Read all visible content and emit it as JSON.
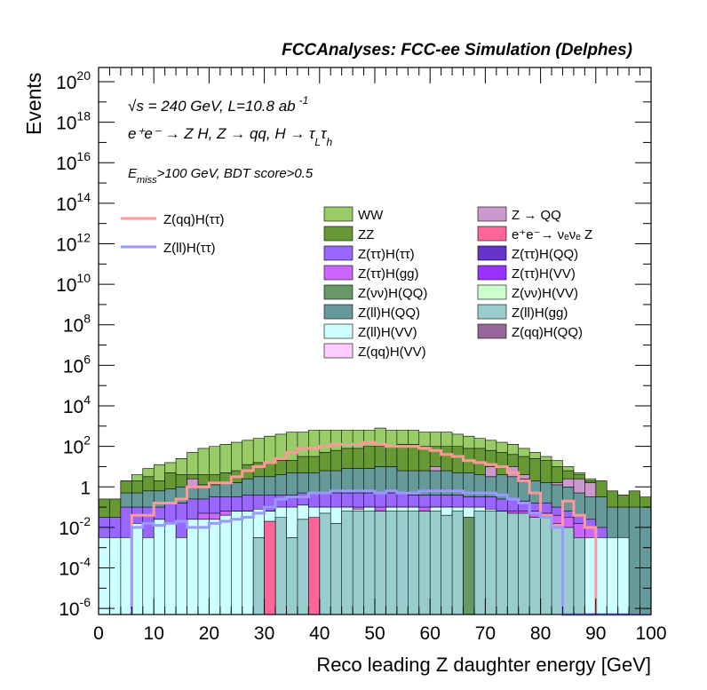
{
  "chart_data": {
    "type": "stacked-histogram",
    "title": "FCCAnalyses: FCC-ee Simulation (Delphes)",
    "xlabel": "Reco leading Z daughter energy [GeV]",
    "ylabel": "Events",
    "xlim": [
      0,
      100
    ],
    "ylim_log10": [
      -6.3,
      20.7
    ],
    "yscale": "log",
    "x_ticks": [
      "0",
      "10",
      "20",
      "30",
      "40",
      "50",
      "60",
      "70",
      "80",
      "90",
      "100"
    ],
    "y_ticks": [
      {
        "base": "10",
        "exp": "-6",
        "v": -6
      },
      {
        "base": "10",
        "exp": "-4",
        "v": -4
      },
      {
        "base": "10",
        "exp": "-2",
        "v": -2
      },
      {
        "base": "1",
        "exp": "",
        "v": 0
      },
      {
        "base": "10",
        "exp": "2",
        "v": 2
      },
      {
        "base": "10",
        "exp": "4",
        "v": 4
      },
      {
        "base": "10",
        "exp": "6",
        "v": 6
      },
      {
        "base": "10",
        "exp": "8",
        "v": 8
      },
      {
        "base": "10",
        "exp": "10",
        "v": 10
      },
      {
        "base": "10",
        "exp": "12",
        "v": 12
      },
      {
        "base": "10",
        "exp": "14",
        "v": 14
      },
      {
        "base": "10",
        "exp": "16",
        "v": 16
      },
      {
        "base": "10",
        "exp": "18",
        "v": 18
      },
      {
        "base": "10",
        "exp": "20",
        "v": 20
      }
    ],
    "annotations": {
      "line1_sqrt": "√s",
      "line1_rest": " = 240 GeV, L=10.8 ab",
      "line1_sup": "-1",
      "line2": "e⁺e⁻ → Z H, Z → qq, H → τ",
      "line2_sub1": "L",
      "line2_tau": "τ",
      "line2_sub2": "h",
      "line3_E": "E",
      "line3_sub": "miss",
      "line3_rest": ">100 GeV, BDT score>0.5"
    },
    "bin_edges": [
      0,
      100
    ],
    "bin_width": 2,
    "signal": [
      {
        "name": "Z(qq)H(ττ)",
        "color": "#ff9999",
        "log10_values": [
          null,
          null,
          null,
          -1.4,
          -1.4,
          -0.8,
          -0.8,
          -0.6,
          0,
          0,
          0.2,
          0.2,
          0.5,
          0.8,
          1.0,
          1.2,
          1.4,
          1.7,
          1.9,
          1.9,
          2.0,
          2.1,
          2.1,
          2.1,
          2.2,
          2.1,
          2.0,
          2.0,
          2.0,
          1.9,
          1.8,
          1.6,
          1.5,
          1.3,
          1.2,
          1.1,
          1.0,
          0.7,
          0.3,
          -0.3,
          -1.4,
          -1.9,
          -0.7,
          -1.4,
          -2.0,
          null,
          null,
          null,
          null,
          null
        ]
      },
      {
        "name": "Z(ll)H(ττ)",
        "color": "#9999ff",
        "log10_values": [
          null,
          null,
          null,
          -2.0,
          -1.8,
          -1.9,
          -1.8,
          -1.7,
          -2.0,
          -2.0,
          -1.8,
          -1.7,
          -1.6,
          -1.5,
          -1.3,
          -1.0,
          -0.6,
          -0.5,
          -0.5,
          -0.3,
          -0.3,
          -0.2,
          -0.2,
          -0.2,
          -0.2,
          -0.3,
          -0.2,
          -0.3,
          -0.3,
          -0.2,
          -0.2,
          -0.2,
          -0.2,
          -0.3,
          -0.3,
          -0.3,
          -0.4,
          -0.6,
          -0.8,
          -1.3,
          -1.5,
          -2.0,
          null,
          null,
          null,
          null,
          null,
          null,
          null,
          null
        ]
      }
    ],
    "stack_legend": [
      {
        "name": "WW",
        "color": "#99cc66"
      },
      {
        "name": "Z → QQ",
        "color": "#cc99cc"
      },
      {
        "name": "ZZ",
        "color": "#669933"
      },
      {
        "name": "e⁺e⁻→ νₑνₑ Z",
        "color": "#ff6699"
      },
      {
        "name": "Z(ττ)H(ττ)",
        "color": "#9966ff"
      },
      {
        "name": "Z(ττ)H(QQ)",
        "color": "#6633cc"
      },
      {
        "name": "Z(ττ)H(gg)",
        "color": "#cc66ff"
      },
      {
        "name": "Z(ττ)H(VV)",
        "color": "#9933ff"
      },
      {
        "name": "Z(νν)H(QQ)",
        "color": "#669966"
      },
      {
        "name": "Z(νν)H(VV)",
        "color": "#ccffcc"
      },
      {
        "name": "Z(ll)H(QQ)",
        "color": "#669999"
      },
      {
        "name": "Z(ll)H(gg)",
        "color": "#99cccc"
      },
      {
        "name": "Z(ll)H(VV)",
        "color": "#ccffff"
      },
      {
        "name": "Z(qq)H(QQ)",
        "color": "#996699"
      },
      {
        "name": "Z(qq)H(VV)",
        "color": "#ffccff"
      }
    ],
    "stack_tops_log10": [
      {
        "name": "WW",
        "color": "#99cc66",
        "values": [
          -1.0,
          -1.0,
          0.3,
          0.6,
          0.9,
          1.1,
          1.2,
          1.4,
          1.7,
          1.9,
          2.0,
          2.1,
          2.2,
          2.3,
          2.4,
          2.5,
          2.6,
          2.7,
          2.7,
          2.8,
          2.8,
          2.8,
          2.8,
          2.8,
          2.8,
          2.9,
          2.8,
          2.8,
          2.8,
          2.7,
          2.7,
          2.7,
          2.6,
          2.5,
          2.4,
          2.3,
          2.2,
          2.1,
          1.9,
          1.7,
          1.5,
          1.3,
          1.0,
          0.7,
          0.4,
          0,
          -0.5,
          -1.0,
          -0.4,
          -1.0
        ]
      },
      {
        "name": "ZZ",
        "color": "#669933",
        "values": [
          -0.6,
          -0.6,
          0.3,
          0.3,
          0.5,
          0.3,
          0.7,
          0.6,
          0.6,
          0.6,
          0.6,
          0.7,
          0.8,
          1.1,
          1.2,
          1.2,
          1.3,
          1.3,
          1.5,
          1.5,
          1.7,
          1.8,
          1.9,
          1.9,
          2.0,
          2.0,
          2.0,
          2.1,
          2.1,
          2.0,
          2.0,
          2.0,
          2.0,
          1.9,
          1.9,
          1.8,
          1.7,
          1.6,
          1.5,
          1.4,
          1.3,
          1.0,
          0.8,
          0.6,
          0.3,
          0.3,
          -0.2,
          -0.4,
          -0.2,
          -0.5
        ]
      },
      {
        "name": "Z → QQ",
        "color": "#cc99cc",
        "values": [
          null,
          null,
          null,
          null,
          null,
          null,
          null,
          null,
          0.4,
          null,
          null,
          null,
          null,
          -0.1,
          null,
          null,
          null,
          null,
          -0.4,
          null,
          null,
          null,
          null,
          0.2,
          0.8,
          1.0,
          1.0,
          0.6,
          0.6,
          0.6,
          1.0,
          0.2,
          0.2,
          0.2,
          null,
          1.0,
          0.4,
          1.0,
          0.6,
          0.2,
          -0.3,
          0.2,
          0.4,
          0.4,
          0.2,
          null,
          null,
          null,
          null,
          null
        ]
      },
      {
        "name": "Z(ll)H(QQ)",
        "color": "#669999",
        "values": [
          -1.5,
          -1.5,
          -0.3,
          -0.3,
          -0.2,
          -0.2,
          -0.1,
          0,
          0,
          0.1,
          0.1,
          0.2,
          0.2,
          0.4,
          0.5,
          0.5,
          0.6,
          0.7,
          0.7,
          0.7,
          0.8,
          0.8,
          0.9,
          0.9,
          0.9,
          1.0,
          1.0,
          0.8,
          0.8,
          0.8,
          0.8,
          0.8,
          0.7,
          0.7,
          0.6,
          0.5,
          0.6,
          0.5,
          0.4,
          0.3,
          0.2,
          0.1,
          0,
          -0.3,
          -0.5,
          -0.5,
          -1.0,
          -1.0,
          -1.0,
          -1.0
        ]
      },
      {
        "name": "Z(ττ)H(ττ)",
        "color": "#9966ff",
        "values": [
          -1.5,
          -1.5,
          -1.0,
          -1.0,
          -1.0,
          -1.0,
          -0.8,
          -0.8,
          -0.6,
          -0.6,
          -0.5,
          -0.5,
          -0.5,
          -0.4,
          -0.4,
          -0.4,
          -0.4,
          -0.4,
          -0.3,
          -0.3,
          -0.3,
          -0.3,
          -0.3,
          -0.3,
          -0.3,
          -0.3,
          -0.3,
          -0.3,
          -0.4,
          -0.4,
          -0.4,
          -0.4,
          -0.4,
          -0.5,
          -0.5,
          -0.5,
          -0.6,
          -0.6,
          -0.7,
          -0.8,
          -0.8,
          -1.0,
          -1.2,
          -1.4,
          -1.6,
          -2.0,
          null,
          null,
          null,
          null
        ]
      },
      {
        "name": "Z(ττ)H(gg)",
        "color": "#cc66ff",
        "values": [
          null,
          null,
          null,
          null,
          null,
          null,
          null,
          null,
          null,
          -1.3,
          -1.3,
          -1.2,
          -1.2,
          -1.2,
          -1.2,
          -1.2,
          -1.1,
          -1.1,
          -1.0,
          -1.1,
          -1.0,
          -1.1,
          -1.0,
          -1.0,
          -1.0,
          -1.0,
          -1.0,
          -1.0,
          -1.0,
          -1.0,
          -1.0,
          -1.0,
          -1.1,
          -1.1,
          -1.1,
          -1.2,
          -1.2,
          -1.2,
          -1.2,
          -1.2,
          -1.3,
          -1.4,
          -1.5,
          -1.8,
          -2.0,
          null,
          null,
          null,
          null,
          null
        ]
      },
      {
        "name": "Z(ll)H(VV)",
        "color": "#ccffff",
        "values": [
          -2.5,
          -2.5,
          -2.5,
          -1.8,
          -2.5,
          -1.6,
          -1.8,
          -2.5,
          -1.6,
          -1.6,
          -1.6,
          -1.4,
          -1.2,
          -1.2,
          -1.1,
          -1.2,
          -1.0,
          -1.0,
          -0.9,
          -1.0,
          -1.0,
          -1.0,
          -1.0,
          -1.1,
          -1.0,
          -1.2,
          -1.0,
          -1.0,
          -1.0,
          -1.2,
          -1.0,
          -1.0,
          -1.0,
          -1.0,
          -1.0,
          -1.1,
          -1.2,
          -1.3,
          -1.5,
          -1.5,
          -1.8,
          -1.8,
          -2.0,
          -2.5,
          -2.5,
          -2.5,
          -2.5,
          -2.5,
          null,
          null
        ]
      },
      {
        "name": "Z(ll)H(gg)",
        "color": "#99cccc",
        "values": [
          null,
          null,
          null,
          null,
          null,
          null,
          null,
          null,
          null,
          null,
          null,
          null,
          null,
          null,
          -2.5,
          -2.5,
          -1.5,
          -2.5,
          -1.6,
          -2.0,
          -1.3,
          -1.8,
          -1.2,
          -1.2,
          -1.2,
          -1.2,
          -1.2,
          -1.2,
          -1.2,
          -1.2,
          -1.2,
          -1.4,
          -1.2,
          -1.5,
          -1.2,
          -1.2,
          -1.2,
          -1.3,
          -1.3,
          -1.5,
          -1.5,
          -1.8,
          -2.0,
          -2.5,
          null,
          null,
          null,
          null,
          null,
          null
        ]
      },
      {
        "name": "Z(νν)H(QQ)",
        "color": "#669966",
        "values": [
          null,
          null,
          null,
          null,
          null,
          null,
          null,
          null,
          null,
          null,
          null,
          null,
          null,
          null,
          null,
          null,
          null,
          null,
          null,
          null,
          null,
          null,
          null,
          null,
          null,
          null,
          null,
          null,
          null,
          null,
          null,
          null,
          null,
          -1.5,
          null,
          null,
          null,
          null,
          null,
          null,
          null,
          null,
          null,
          null,
          null,
          null,
          null,
          null,
          null,
          null
        ]
      },
      {
        "name": "e⁺e⁻→ νₑνₑ Z",
        "color": "#ff6699",
        "values": [
          null,
          null,
          null,
          null,
          null,
          null,
          null,
          null,
          null,
          null,
          null,
          null,
          null,
          null,
          null,
          -1.7,
          null,
          null,
          null,
          -1.5,
          null,
          null,
          null,
          null,
          null,
          null,
          null,
          null,
          null,
          null,
          null,
          null,
          null,
          null,
          null,
          null,
          null,
          null,
          null,
          null,
          null,
          null,
          null,
          null,
          null,
          null,
          null,
          null,
          null,
          null
        ]
      }
    ]
  }
}
